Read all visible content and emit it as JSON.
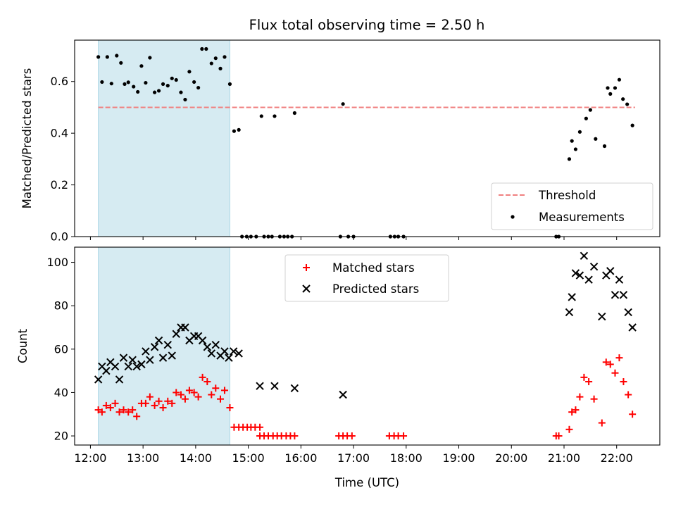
{
  "chart_data": {
    "type": "scatter",
    "title": "Flux total observing time = 2.50 h",
    "xlabel": "Time (UTC)",
    "x_ticks": [
      "12:00",
      "13:00",
      "14:00",
      "15:00",
      "16:00",
      "17:00",
      "18:00",
      "19:00",
      "20:00",
      "21:00",
      "22:00"
    ],
    "xlim_hours": [
      11.7,
      22.82
    ],
    "highlight_span_hours": [
      12.15,
      14.65
    ],
    "colors": {
      "highlight": "#add8e6",
      "threshold": "#f08080",
      "matched": "#ff0000",
      "predicted": "#000000",
      "measurement": "#000000"
    },
    "panels": [
      {
        "ylabel": "Matched/Predicted stars",
        "ylim": [
          0,
          0.76
        ],
        "yticks": [
          0.0,
          0.2,
          0.4,
          0.6
        ],
        "ytick_labels": [
          "0.0",
          "0.2",
          "0.4",
          "0.6"
        ],
        "legend_position": "lower-right",
        "threshold": {
          "name": "Threshold",
          "value": 0.5,
          "x_range_hours": [
            12.15,
            22.35
          ]
        },
        "measurements": {
          "name": "Measurements",
          "points": [
            [
              12.15,
              0.695
            ],
            [
              12.22,
              0.598
            ],
            [
              12.32,
              0.695
            ],
            [
              12.4,
              0.592
            ],
            [
              12.5,
              0.7
            ],
            [
              12.58,
              0.672
            ],
            [
              12.65,
              0.59
            ],
            [
              12.72,
              0.597
            ],
            [
              12.82,
              0.58
            ],
            [
              12.9,
              0.56
            ],
            [
              12.97,
              0.66
            ],
            [
              13.05,
              0.595
            ],
            [
              13.13,
              0.692
            ],
            [
              13.22,
              0.558
            ],
            [
              13.3,
              0.564
            ],
            [
              13.38,
              0.59
            ],
            [
              13.47,
              0.584
            ],
            [
              13.55,
              0.612
            ],
            [
              13.63,
              0.606
            ],
            [
              13.72,
              0.558
            ],
            [
              13.8,
              0.53
            ],
            [
              13.88,
              0.638
            ],
            [
              13.97,
              0.598
            ],
            [
              14.05,
              0.576
            ],
            [
              14.12,
              0.726
            ],
            [
              14.2,
              0.726
            ],
            [
              14.3,
              0.67
            ],
            [
              14.38,
              0.69
            ],
            [
              14.47,
              0.65
            ],
            [
              14.55,
              0.695
            ],
            [
              14.65,
              0.59
            ],
            [
              14.73,
              0.408
            ],
            [
              14.82,
              0.413
            ],
            [
              15.25,
              0.466
            ],
            [
              15.5,
              0.466
            ],
            [
              15.88,
              0.478
            ],
            [
              16.8,
              0.513
            ],
            [
              21.1,
              0.3
            ],
            [
              21.15,
              0.37
            ],
            [
              21.22,
              0.338
            ],
            [
              21.3,
              0.405
            ],
            [
              21.42,
              0.457
            ],
            [
              21.5,
              0.49
            ],
            [
              21.6,
              0.378
            ],
            [
              21.77,
              0.35
            ],
            [
              21.83,
              0.575
            ],
            [
              21.88,
              0.552
            ],
            [
              21.97,
              0.575
            ],
            [
              22.05,
              0.607
            ],
            [
              22.12,
              0.532
            ],
            [
              22.2,
              0.512
            ],
            [
              22.3,
              0.43
            ],
            [
              14.88,
              0
            ],
            [
              14.97,
              0
            ],
            [
              15.05,
              0
            ],
            [
              15.15,
              0
            ],
            [
              15.3,
              0
            ],
            [
              15.38,
              0
            ],
            [
              15.45,
              0
            ],
            [
              15.6,
              0
            ],
            [
              15.68,
              0
            ],
            [
              15.75,
              0
            ],
            [
              15.83,
              0
            ],
            [
              16.75,
              0
            ],
            [
              16.9,
              0
            ],
            [
              17.0,
              0
            ],
            [
              17.7,
              0
            ],
            [
              17.78,
              0
            ],
            [
              17.85,
              0
            ],
            [
              17.95,
              0
            ],
            [
              20.85,
              0
            ],
            [
              20.9,
              0
            ]
          ]
        }
      },
      {
        "ylabel": "Count",
        "ylim": [
          15.8,
          107
        ],
        "yticks": [
          20,
          40,
          60,
          80,
          100
        ],
        "ytick_labels": [
          "20",
          "40",
          "60",
          "80",
          "100"
        ],
        "legend_position": "upper-center",
        "series": [
          {
            "name": "Matched stars",
            "marker": "plus",
            "points": [
              [
                12.15,
                32
              ],
              [
                12.22,
                31
              ],
              [
                12.3,
                34
              ],
              [
                12.38,
                33
              ],
              [
                12.47,
                35
              ],
              [
                12.55,
                31
              ],
              [
                12.63,
                32
              ],
              [
                12.72,
                31
              ],
              [
                12.8,
                32
              ],
              [
                12.88,
                29
              ],
              [
                12.97,
                35
              ],
              [
                13.05,
                35
              ],
              [
                13.13,
                38
              ],
              [
                13.22,
                34
              ],
              [
                13.3,
                36
              ],
              [
                13.38,
                33
              ],
              [
                13.47,
                36
              ],
              [
                13.55,
                35
              ],
              [
                13.63,
                40
              ],
              [
                13.72,
                39
              ],
              [
                13.8,
                37
              ],
              [
                13.88,
                41
              ],
              [
                13.97,
                40
              ],
              [
                14.05,
                38
              ],
              [
                14.13,
                47
              ],
              [
                14.22,
                45
              ],
              [
                14.3,
                39
              ],
              [
                14.38,
                42
              ],
              [
                14.47,
                37
              ],
              [
                14.55,
                41
              ],
              [
                14.65,
                33
              ],
              [
                14.73,
                24
              ],
              [
                14.82,
                24
              ],
              [
                14.9,
                24
              ],
              [
                14.98,
                24
              ],
              [
                15.05,
                24
              ],
              [
                15.13,
                24
              ],
              [
                15.22,
                24
              ],
              [
                15.22,
                20
              ],
              [
                15.3,
                20
              ],
              [
                15.38,
                20
              ],
              [
                15.47,
                20
              ],
              [
                15.55,
                20
              ],
              [
                15.63,
                20
              ],
              [
                15.72,
                20
              ],
              [
                15.8,
                20
              ],
              [
                15.88,
                20
              ],
              [
                16.72,
                20
              ],
              [
                16.8,
                20
              ],
              [
                16.88,
                20
              ],
              [
                16.97,
                20
              ],
              [
                17.68,
                20
              ],
              [
                17.77,
                20
              ],
              [
                17.85,
                20
              ],
              [
                17.95,
                20
              ],
              [
                20.85,
                20
              ],
              [
                20.9,
                20
              ],
              [
                21.1,
                23
              ],
              [
                21.15,
                31
              ],
              [
                21.22,
                32
              ],
              [
                21.3,
                38
              ],
              [
                21.38,
                47
              ],
              [
                21.47,
                45
              ],
              [
                21.57,
                37
              ],
              [
                21.72,
                26
              ],
              [
                21.8,
                54
              ],
              [
                21.88,
                53
              ],
              [
                21.97,
                49
              ],
              [
                22.05,
                56
              ],
              [
                22.13,
                45
              ],
              [
                22.22,
                39
              ],
              [
                22.3,
                30
              ]
            ]
          },
          {
            "name": "Predicted stars",
            "marker": "x",
            "points": [
              [
                12.15,
                46
              ],
              [
                12.22,
                52
              ],
              [
                12.3,
                50
              ],
              [
                12.38,
                54
              ],
              [
                12.47,
                52
              ],
              [
                12.55,
                46
              ],
              [
                12.63,
                56
              ],
              [
                12.72,
                52
              ],
              [
                12.8,
                55
              ],
              [
                12.88,
                52
              ],
              [
                12.97,
                53
              ],
              [
                13.05,
                59
              ],
              [
                13.13,
                55
              ],
              [
                13.22,
                61
              ],
              [
                13.3,
                64
              ],
              [
                13.38,
                56
              ],
              [
                13.47,
                62
              ],
              [
                13.55,
                57
              ],
              [
                13.63,
                67
              ],
              [
                13.72,
                70
              ],
              [
                13.8,
                70
              ],
              [
                13.88,
                64
              ],
              [
                13.97,
                66
              ],
              [
                14.05,
                66
              ],
              [
                14.13,
                64
              ],
              [
                14.22,
                61
              ],
              [
                14.3,
                58
              ],
              [
                14.38,
                62
              ],
              [
                14.47,
                57
              ],
              [
                14.55,
                59
              ],
              [
                14.63,
                56
              ],
              [
                14.72,
                59
              ],
              [
                14.82,
                58
              ],
              [
                15.22,
                43
              ],
              [
                15.5,
                43
              ],
              [
                15.88,
                42
              ],
              [
                16.8,
                39
              ],
              [
                21.1,
                77
              ],
              [
                21.15,
                84
              ],
              [
                21.22,
                95
              ],
              [
                21.3,
                94
              ],
              [
                21.38,
                103
              ],
              [
                21.47,
                92
              ],
              [
                21.57,
                98
              ],
              [
                21.72,
                75
              ],
              [
                21.8,
                94
              ],
              [
                21.88,
                96
              ],
              [
                21.97,
                85
              ],
              [
                22.05,
                92
              ],
              [
                22.13,
                85
              ],
              [
                22.22,
                77
              ],
              [
                22.3,
                70
              ]
            ]
          }
        ]
      }
    ]
  }
}
